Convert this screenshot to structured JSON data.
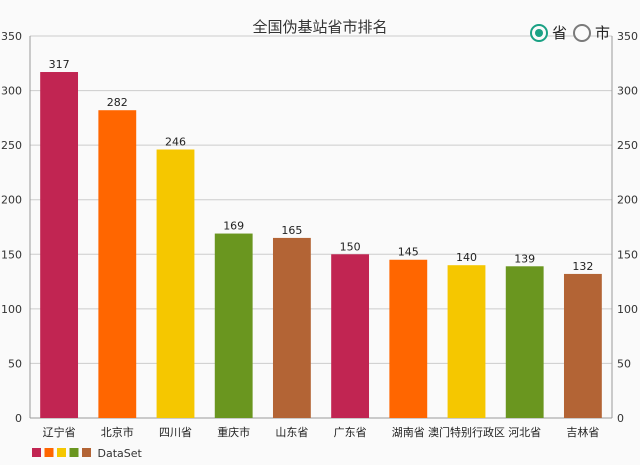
{
  "chart_data": {
    "type": "bar",
    "title": "全国伪基站省市排名",
    "categories": [
      "辽宁省",
      "北京市",
      "四川省",
      "重庆市",
      "山东省",
      "广东省",
      "湖南省",
      "澳门特别行政区",
      "河北省",
      "吉林省"
    ],
    "series": [
      {
        "name": "DataSet",
        "values": [
          317,
          282,
          246,
          169,
          165,
          150,
          145,
          140,
          139,
          132
        ]
      }
    ],
    "colors": [
      "#c12552",
      "#ff6600",
      "#f5c700",
      "#6a961f",
      "#b36435"
    ],
    "ylim": [
      0,
      350
    ],
    "yticks": [
      0,
      50,
      100,
      150,
      200,
      250,
      300,
      350
    ],
    "grid": true,
    "legend": "bottom-left"
  },
  "toggle": {
    "options": [
      {
        "label": "省",
        "checked": true
      },
      {
        "label": "市",
        "checked": false
      }
    ]
  }
}
